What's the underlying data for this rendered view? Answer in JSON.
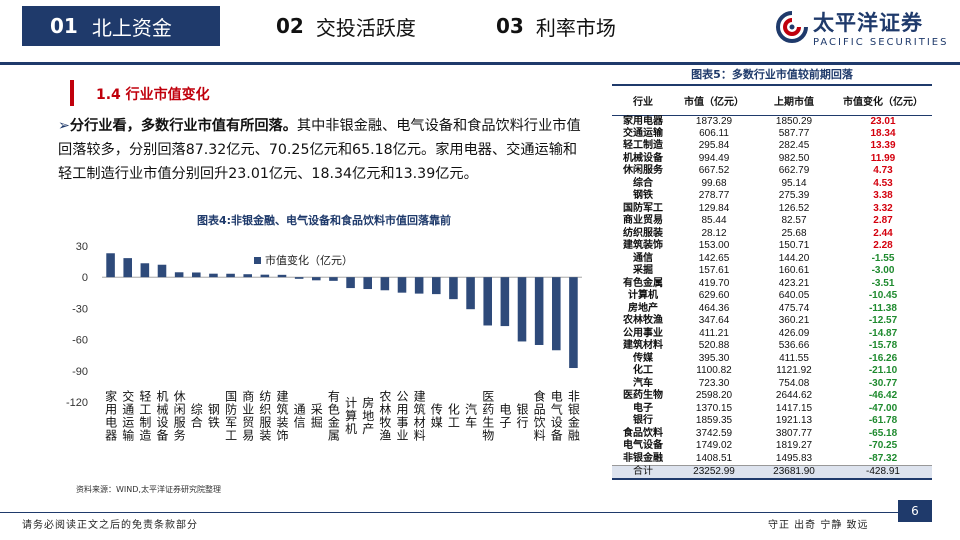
{
  "nav": {
    "tabs": [
      {
        "num": "01",
        "label": "北上资金"
      },
      {
        "num": "02",
        "label": "交投活跃度"
      },
      {
        "num": "03",
        "label": "利率市场"
      }
    ]
  },
  "brand": {
    "cn": "太平洋证券",
    "en": "PACIFIC SECURITIES",
    "color": "#1f3a6b",
    "accent": "#c0000c"
  },
  "section": {
    "title": "1.4 行业市值变化"
  },
  "paragraph": {
    "bullet": "➢",
    "lead": "分行业看，多数行业市值有所回落。",
    "body": "其中非银金融、电气设备和食品饮料行业市值回落较多，分别回落87.32亿元、70.25亿元和65.18亿元。家用电器、交通运输和轻工制造行业市值分别回升23.01亿元、18.34亿元和13.39亿元。"
  },
  "chart": {
    "title": "图表4:非银金融、电气设备和食品饮料市值回落靠前",
    "source": "资料来源：WIND,太平洋证券研究院整理"
  },
  "chart_data": {
    "type": "bar",
    "title": "图表4:非银金融、电气设备和食品饮料市值回落靠前",
    "legend": "市值变化（亿元）",
    "legend_position": "top-left",
    "ylim": [
      -120,
      30
    ],
    "yticks": [
      30,
      0,
      -30,
      -60,
      -90,
      -120
    ],
    "bar_color": "#2e4a7a",
    "categories": [
      "家用电器",
      "交通运输",
      "轻工制造",
      "机械设备",
      "休闲服务",
      "综合",
      "钢铁",
      "国防军工",
      "商业贸易",
      "纺织服装",
      "建筑装饰",
      "通信",
      "采掘",
      "有色金属",
      "计算机",
      "房地产",
      "农林牧渔",
      "公用事业",
      "建筑材料",
      "传媒",
      "化工",
      "汽车",
      "医药生物",
      "电子",
      "银行",
      "食品饮料",
      "电气设备",
      "非银金融"
    ],
    "values": [
      23.01,
      18.34,
      13.39,
      11.99,
      4.73,
      4.53,
      3.38,
      3.32,
      2.87,
      2.44,
      2.28,
      -1.55,
      -3.0,
      -3.51,
      -10.45,
      -11.38,
      -12.57,
      -14.87,
      -15.78,
      -16.26,
      -21.1,
      -30.77,
      -46.42,
      -47.0,
      -61.78,
      -65.18,
      -70.25,
      -87.32
    ]
  },
  "table": {
    "title": "图表5：多数行业市值较前期回落",
    "headers": [
      "行业",
      "市值（亿元）",
      "上期市值",
      "市值变化（亿元）"
    ],
    "rows": [
      [
        "家用电器",
        "1873.29",
        "1850.29",
        "23.01"
      ],
      [
        "交通运输",
        "606.11",
        "587.77",
        "18.34"
      ],
      [
        "轻工制造",
        "295.84",
        "282.45",
        "13.39"
      ],
      [
        "机械设备",
        "994.49",
        "982.50",
        "11.99"
      ],
      [
        "休闲服务",
        "667.52",
        "662.79",
        "4.73"
      ],
      [
        "综合",
        "99.68",
        "95.14",
        "4.53"
      ],
      [
        "钢铁",
        "278.77",
        "275.39",
        "3.38"
      ],
      [
        "国防军工",
        "129.84",
        "126.52",
        "3.32"
      ],
      [
        "商业贸易",
        "85.44",
        "82.57",
        "2.87"
      ],
      [
        "纺织服装",
        "28.12",
        "25.68",
        "2.44"
      ],
      [
        "建筑装饰",
        "153.00",
        "150.71",
        "2.28"
      ],
      [
        "通信",
        "142.65",
        "144.20",
        "-1.55"
      ],
      [
        "采掘",
        "157.61",
        "160.61",
        "-3.00"
      ],
      [
        "有色金属",
        "419.70",
        "423.21",
        "-3.51"
      ],
      [
        "计算机",
        "629.60",
        "640.05",
        "-10.45"
      ],
      [
        "房地产",
        "464.36",
        "475.74",
        "-11.38"
      ],
      [
        "农林牧渔",
        "347.64",
        "360.21",
        "-12.57"
      ],
      [
        "公用事业",
        "411.21",
        "426.09",
        "-14.87"
      ],
      [
        "建筑材料",
        "520.88",
        "536.66",
        "-15.78"
      ],
      [
        "传媒",
        "395.30",
        "411.55",
        "-16.26"
      ],
      [
        "化工",
        "1100.82",
        "1121.92",
        "-21.10"
      ],
      [
        "汽车",
        "723.30",
        "754.08",
        "-30.77"
      ],
      [
        "医药生物",
        "2598.20",
        "2644.62",
        "-46.42"
      ],
      [
        "电子",
        "1370.15",
        "1417.15",
        "-47.00"
      ],
      [
        "银行",
        "1859.35",
        "1921.13",
        "-61.78"
      ],
      [
        "食品饮料",
        "3742.59",
        "3807.77",
        "-65.18"
      ],
      [
        "电气设备",
        "1749.02",
        "1819.27",
        "-70.25"
      ],
      [
        "非银金融",
        "1408.51",
        "1495.83",
        "-87.32"
      ]
    ],
    "total": [
      "合计",
      "23252.99",
      "23681.90",
      "-428.91"
    ]
  },
  "footer": {
    "left": "请务必阅读正文之后的免责条款部分",
    "right": "守正  出奇  宁静  致远",
    "page": "6"
  }
}
